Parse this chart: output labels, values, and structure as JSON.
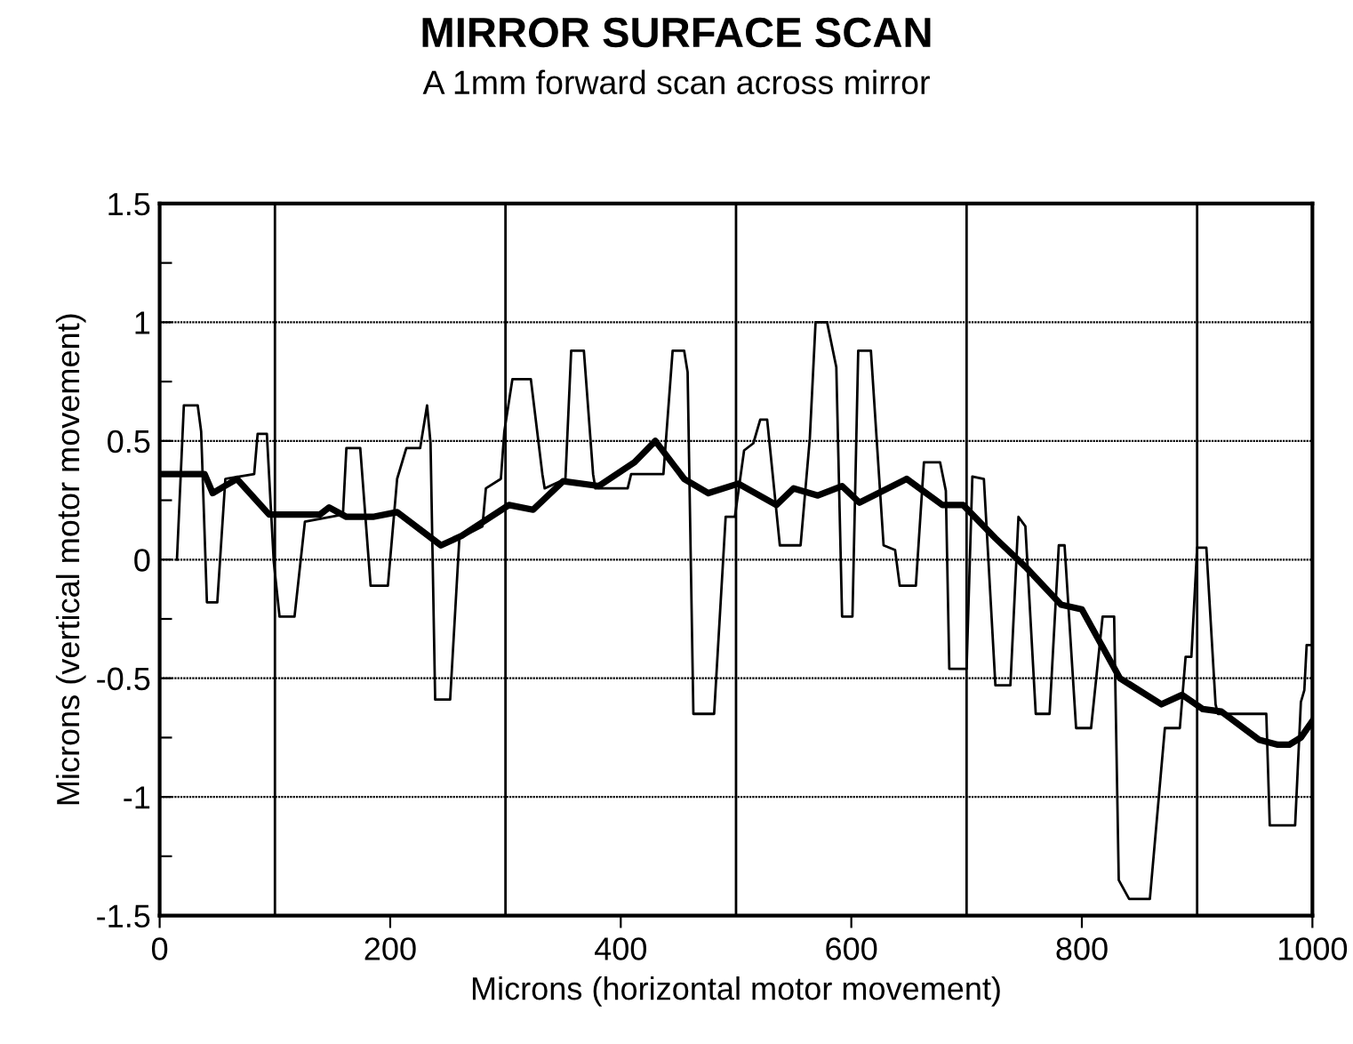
{
  "chart_data": {
    "type": "line",
    "title": "MIRROR SURFACE SCAN",
    "subtitle": "A 1mm forward scan across mirror",
    "xlabel": "Microns (horizontal motor movement)",
    "ylabel": "Microns (vertical motor movement)",
    "xlim": [
      0,
      1000
    ],
    "xticks": [
      0,
      200,
      400,
      600,
      800,
      1000
    ],
    "ylim": [
      -1.5,
      1.5
    ],
    "yticks": [
      -1.5,
      {
        "value": -1.25,
        "label": null
      },
      -1,
      {
        "value": -0.75,
        "label": null
      },
      -0.5,
      {
        "value": -0.25,
        "label": null
      },
      0,
      {
        "value": 0.25,
        "label": null
      },
      0.5,
      {
        "value": 0.75,
        "label": null
      },
      1,
      {
        "value": 1.25,
        "label": null
      },
      1.5
    ],
    "grid": "y",
    "legend": false,
    "marker": "none",
    "ref_lines": [
      {
        "axis": "x",
        "value": 100,
        "label": null
      },
      {
        "axis": "x",
        "value": 300,
        "label": null
      },
      {
        "axis": "x",
        "value": 500,
        "label": null
      },
      {
        "axis": "x",
        "value": 700,
        "label": null
      },
      {
        "axis": "x",
        "value": 900,
        "label": null
      }
    ],
    "series": [
      {
        "color": "#000000",
        "line_style": "solid",
        "x": [
          15,
          21,
          33,
          36,
          41,
          50,
          57,
          82,
          85,
          93,
          99,
          104,
          117,
          126,
          159,
          162,
          174,
          183,
          198,
          206,
          214,
          226,
          232,
          235,
          239,
          252,
          260,
          280,
          283,
          296,
          299,
          306,
          322,
          332,
          334,
          352,
          357,
          368,
          376,
          378,
          406,
          409,
          437,
          445,
          455,
          458,
          463,
          481,
          491,
          499,
          507,
          515,
          521,
          527,
          538,
          556,
          564,
          569,
          579,
          587,
          592,
          601,
          606,
          617,
          628,
          638,
          642,
          656,
          663,
          677,
          682,
          685,
          700,
          705,
          715,
          725,
          738,
          745,
          751,
          760,
          772,
          780,
          785,
          795,
          808,
          818,
          828,
          832,
          841,
          859,
          872,
          885,
          890,
          895,
          900,
          908,
          916,
          918,
          960,
          963,
          985,
          990,
          993,
          995,
          1000
        ],
        "values": [
          0,
          0.65,
          0.65,
          0.54,
          -0.18,
          -0.18,
          0.34,
          0.36,
          0.53,
          0.53,
          -0.01,
          -0.24,
          -0.24,
          0.16,
          0.19,
          0.47,
          0.47,
          -0.11,
          -0.11,
          0.34,
          0.47,
          0.47,
          0.65,
          0.49,
          -0.59,
          -0.59,
          0.09,
          0.14,
          0.3,
          0.34,
          0.54,
          0.76,
          0.76,
          0.36,
          0.3,
          0.34,
          0.88,
          0.88,
          0.36,
          0.3,
          0.3,
          0.36,
          0.36,
          0.88,
          0.88,
          0.79,
          -0.65,
          -0.65,
          0.18,
          0.18,
          0.46,
          0.49,
          0.59,
          0.59,
          0.06,
          0.06,
          0.51,
          1.0,
          1.0,
          0.81,
          -0.24,
          -0.24,
          0.88,
          0.88,
          0.06,
          0.04,
          -0.11,
          -0.11,
          0.41,
          0.41,
          0.29,
          -0.46,
          -0.46,
          0.35,
          0.34,
          -0.53,
          -0.53,
          0.18,
          0.14,
          -0.65,
          -0.65,
          0.06,
          0.06,
          -0.71,
          -0.71,
          -0.24,
          -0.24,
          -1.35,
          -1.43,
          -1.43,
          -0.71,
          -0.71,
          -0.41,
          -0.41,
          0.05,
          0.05,
          -0.61,
          -0.65,
          -0.65,
          -1.12,
          -1.12,
          -0.6,
          -0.55,
          -0.36,
          -0.36
        ]
      },
      {
        "color": "#000000",
        "line_style": "solid",
        "x": [
          0,
          39,
          46,
          67,
          95,
          139,
          147,
          162,
          185,
          206,
          244,
          262,
          303,
          324,
          350,
          381,
          412,
          430,
          455,
          476,
          502,
          535,
          550,
          571,
          592,
          607,
          648,
          679,
          697,
          725,
          751,
          782,
          800,
          833,
          869,
          887,
          905,
          921,
          954,
          970,
          980,
          990,
          1000
        ],
        "values": [
          0.36,
          0.36,
          0.28,
          0.34,
          0.19,
          0.19,
          0.22,
          0.18,
          0.18,
          0.2,
          0.06,
          0.1,
          0.23,
          0.21,
          0.33,
          0.31,
          0.41,
          0.5,
          0.34,
          0.28,
          0.32,
          0.23,
          0.3,
          0.27,
          0.31,
          0.24,
          0.34,
          0.23,
          0.23,
          0.09,
          -0.03,
          -0.19,
          -0.21,
          -0.5,
          -0.61,
          -0.57,
          -0.63,
          -0.64,
          -0.76,
          -0.78,
          -0.78,
          -0.75,
          -0.68
        ]
      }
    ]
  }
}
